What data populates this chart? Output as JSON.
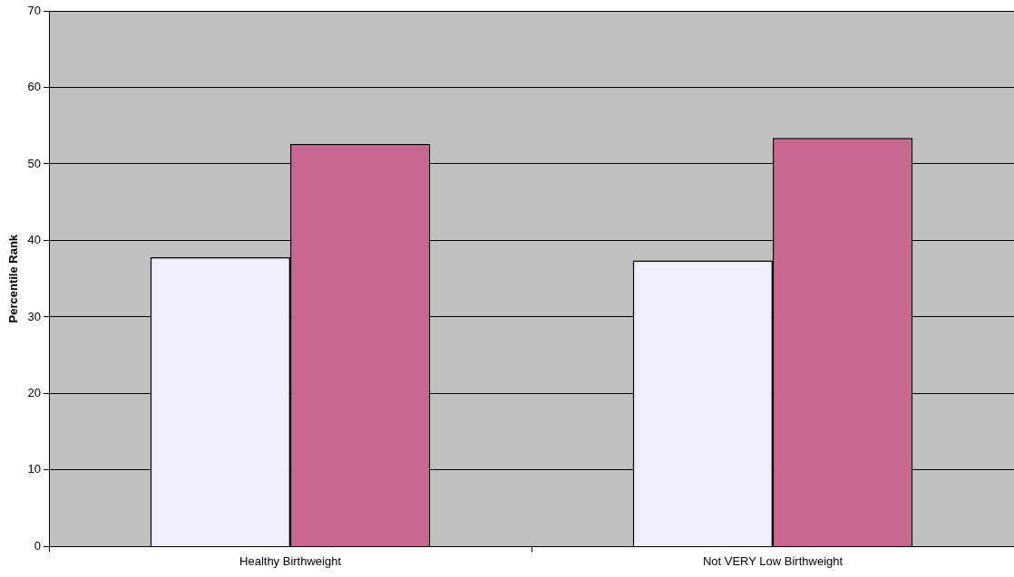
{
  "chart_data": {
    "type": "bar",
    "ylabel": "Percentile Rank",
    "categories": [
      "Healthy Birthweight",
      "Not VERY Low Birthweight"
    ],
    "series": [
      {
        "color": "#eeeeff",
        "values": [
          37.8,
          37.4
        ]
      },
      {
        "color": "#c86890",
        "values": [
          52.6,
          53.4
        ]
      }
    ],
    "ylim": [
      0,
      70
    ],
    "yticks": [
      0,
      10,
      20,
      30,
      40,
      50,
      60,
      70
    ],
    "grid": "y"
  }
}
